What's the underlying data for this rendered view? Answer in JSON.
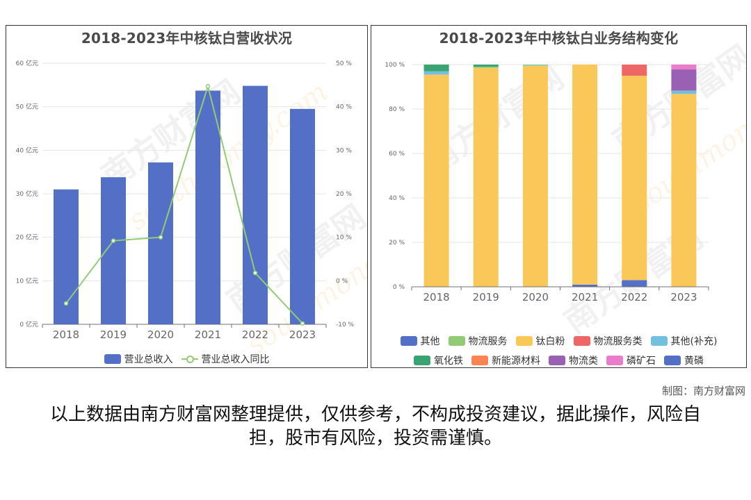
{
  "credit": "制图：南方财富网",
  "disclaimer": "以上数据由南方财富网整理提供，仅供参考，不构成投资建议，据此操作，风险自担，股市有风险，投资需谨慎。",
  "watermark": {
    "text": "南方财富网",
    "sub": "southmoney.com"
  },
  "charts": [
    {
      "title": "2018-2023年中核钛白营收状况",
      "legend": [
        {
          "name": "营业总收入",
          "kind": "bar",
          "color": "#5470c6"
        },
        {
          "name": "营业总收入同比",
          "kind": "line",
          "color": "#91cc75"
        }
      ]
    },
    {
      "title": "2018-2023年中核钛白业务结构变化",
      "legend": [
        {
          "name": "其他",
          "color": "#5470c6"
        },
        {
          "name": "物流服务",
          "color": "#91cc75"
        },
        {
          "name": "钛白粉",
          "color": "#fac858"
        },
        {
          "name": "物流服务类",
          "color": "#ee6666"
        },
        {
          "name": "其他(补充)",
          "color": "#73c0de"
        },
        {
          "name": "氧化铁",
          "color": "#3ba272"
        },
        {
          "name": "新能源材料",
          "color": "#fc8452"
        },
        {
          "name": "物流类",
          "color": "#9a60b4"
        },
        {
          "name": "磷矿石",
          "color": "#ea7ccc"
        },
        {
          "name": "黄磷",
          "color": "#5470c6"
        }
      ]
    }
  ],
  "chart_data": [
    {
      "type": "bar",
      "title": "2018-2023年中核钛白营收状况",
      "categories": [
        "2018",
        "2019",
        "2020",
        "2021",
        "2022",
        "2023"
      ],
      "y_left": {
        "unit": "亿元",
        "ticks": [
          0,
          10,
          20,
          30,
          40,
          50,
          60
        ],
        "tick_labels": [
          "0 亿元",
          "10 亿元",
          "20 亿元",
          "30 亿元",
          "40 亿元",
          "50 亿元",
          "60 亿元"
        ]
      },
      "y_right": {
        "unit": "%",
        "ticks": [
          -10,
          0,
          10,
          20,
          30,
          40,
          50
        ],
        "tick_labels": [
          "-10 %",
          "0 %",
          "10 %",
          "20 %",
          "30 %",
          "40 %",
          "50 %"
        ]
      },
      "series": [
        {
          "name": "营业总收入",
          "type": "bar",
          "axis": "left",
          "color": "#5470c6",
          "values": [
            31.0,
            33.8,
            37.2,
            53.7,
            54.8,
            49.5
          ]
        },
        {
          "name": "营业总收入同比",
          "type": "line",
          "axis": "right",
          "color": "#91cc75",
          "values": [
            -5.2,
            9.2,
            10.0,
            44.7,
            1.8,
            -9.8
          ]
        }
      ],
      "legend_position": "bottom",
      "grid": true
    },
    {
      "type": "bar",
      "stacked": true,
      "title": "2018-2023年中核钛白业务结构变化",
      "categories": [
        "2018",
        "2019",
        "2020",
        "2021",
        "2022",
        "2023"
      ],
      "y": {
        "unit": "%",
        "ticks": [
          0,
          20,
          40,
          60,
          80,
          100
        ],
        "tick_labels": [
          "0 %",
          "20 %",
          "40 %",
          "60 %",
          "80 %",
          "100 %"
        ]
      },
      "series": [
        {
          "name": "黄磷",
          "color": "#5470c6",
          "values": [
            0,
            0,
            0,
            1,
            3,
            0
          ]
        },
        {
          "name": "钛白粉",
          "color": "#fac858",
          "values": [
            95.5,
            98.5,
            99.5,
            99,
            92,
            86.8
          ]
        },
        {
          "name": "其他(补充)",
          "color": "#73c0de",
          "values": [
            1.5,
            0,
            0.3,
            0,
            0,
            1.5
          ]
        },
        {
          "name": "物流服务",
          "color": "#91cc75",
          "values": [
            0,
            0.5,
            0.2,
            0,
            0,
            0
          ]
        },
        {
          "name": "氧化铁",
          "color": "#3ba272",
          "values": [
            3,
            1,
            0,
            0,
            0,
            0
          ]
        },
        {
          "name": "物流服务类",
          "color": "#ee6666",
          "values": [
            0,
            0,
            0,
            0,
            5,
            0
          ]
        },
        {
          "name": "物流类",
          "color": "#9a60b4",
          "values": [
            0,
            0,
            0,
            0,
            0,
            9.5
          ]
        },
        {
          "name": "磷矿石",
          "color": "#ea7ccc",
          "values": [
            0,
            0,
            0,
            0,
            0,
            2.2
          ]
        }
      ],
      "legend_position": "bottom",
      "grid": true
    }
  ]
}
